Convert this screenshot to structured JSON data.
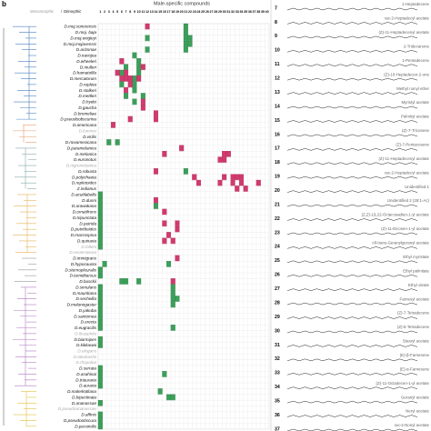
{
  "panel_label": "b",
  "title": "Male-specific compounds",
  "legend": [
    "Monomorphic",
    "/",
    "Dimorphic"
  ],
  "columns": [
    1,
    2,
    3,
    4,
    5,
    6,
    7,
    8,
    9,
    10,
    11,
    12,
    13,
    14,
    15,
    16,
    17,
    18,
    19,
    20,
    21,
    22,
    23,
    24,
    25,
    26,
    27,
    28,
    29,
    30,
    31,
    32,
    33,
    34,
    35,
    36,
    37,
    38,
    39,
    40
  ],
  "species": [
    {
      "name": "D.moj.sonorensis",
      "g": [
        21
      ],
      "m": [
        12
      ]
    },
    {
      "name": "D.moj. baja",
      "g": [
        21
      ],
      "m": []
    },
    {
      "name": "D.moj.wrigleyi",
      "g": [
        12,
        21,
        22
      ],
      "m": []
    },
    {
      "name": "D.moj.mojavensis",
      "g": [
        21,
        22
      ],
      "m": []
    },
    {
      "name": "D.arizonae",
      "g": [
        12,
        21
      ],
      "m": []
    },
    {
      "name": "D.navojoa",
      "g": [
        9
      ],
      "m": []
    },
    {
      "name": "D.wheeleri",
      "g": [
        10
      ],
      "m": [
        6
      ]
    },
    {
      "name": "D.mulleri",
      "g": [
        7,
        10
      ],
      "m": [
        11
      ]
    },
    {
      "name": "D.hamatofila",
      "g": [
        6,
        10
      ],
      "m": [
        5,
        7
      ]
    },
    {
      "name": "D.mercatorum",
      "g": [
        9
      ],
      "m": [
        6,
        7,
        8,
        10
      ]
    },
    {
      "name": "D.repleta",
      "g": [
        6,
        9
      ],
      "m": [
        8
      ]
    },
    {
      "name": "D.stalkeri",
      "g": [
        9
      ],
      "m": [
        7
      ]
    },
    {
      "name": "D.mettleri",
      "g": [
        7,
        11
      ],
      "m": []
    },
    {
      "name": "D.hydei",
      "g": [
        9
      ],
      "m": [
        11
      ]
    },
    {
      "name": "D.gaucha",
      "g": [],
      "m": [
        11
      ]
    },
    {
      "name": "D.bromeliae",
      "g": [],
      "m": [
        14
      ]
    },
    {
      "name": "D.pseudoobscurina",
      "g": [],
      "m": [
        8,
        14
      ]
    },
    {
      "name": "D.americana",
      "g": [],
      "m": [
        4
      ]
    },
    {
      "name": "D.lummei",
      "gray": true,
      "g": [],
      "m": []
    },
    {
      "name": "D.virilis",
      "g": [],
      "m": []
    },
    {
      "name": "D.novamexicana",
      "g": [
        3,
        5
      ],
      "m": []
    },
    {
      "name": "D.paramelanica",
      "g": [],
      "m": [
        20
      ]
    },
    {
      "name": "D.melanica",
      "g": [],
      "m": [
        16,
        30,
        31
      ]
    },
    {
      "name": "D.euronotus",
      "g": [],
      "m": [
        29,
        30
      ]
    },
    {
      "name": "D.nigromelanica",
      "gray": true,
      "g": [],
      "m": []
    },
    {
      "name": "D.robusta",
      "g": [
        21
      ],
      "m": [
        14
      ]
    },
    {
      "name": "D.polychaeta",
      "g": [],
      "m": [
        23,
        30,
        32,
        33,
        34
      ]
    },
    {
      "name": "D.repletoides",
      "g": [],
      "m": [
        24,
        29,
        32,
        34,
        38
      ]
    },
    {
      "name": "Z.indianus",
      "g": [],
      "m": [
        33,
        35
      ]
    },
    {
      "name": "D.acutilabella",
      "g": [
        1
      ],
      "m": []
    },
    {
      "name": "D.dunni",
      "g": [
        1
      ],
      "m": [
        14
      ]
    },
    {
      "name": "D.arawakana",
      "g": [
        1,
        14
      ],
      "m": []
    },
    {
      "name": "D.ornatifrons",
      "g": [
        1
      ],
      "m": [
        16
      ]
    },
    {
      "name": "D.tripunctata",
      "g": [
        1
      ],
      "m": []
    },
    {
      "name": "D.putrida",
      "g": [
        1
      ],
      "m": [
        16,
        19
      ]
    },
    {
      "name": "D.putridioides",
      "g": [
        1
      ],
      "m": [
        19
      ]
    },
    {
      "name": "D.macrospina",
      "g": [
        1
      ],
      "m": [
        17
      ]
    },
    {
      "name": "D.quinaria",
      "g": [
        1
      ],
      "m": [
        16,
        18
      ]
    },
    {
      "name": "D.falleni",
      "gray": true,
      "g": [
        1
      ],
      "m": []
    },
    {
      "name": "D.neotestacea",
      "gray": true,
      "g": [],
      "m": []
    },
    {
      "name": "D.immigrans",
      "g": [],
      "m": [
        19
      ]
    },
    {
      "name": "D.hypocausta",
      "g": [
        2,
        17
      ],
      "m": []
    },
    {
      "name": "D.sternopleuralis",
      "g": [
        1
      ],
      "m": []
    },
    {
      "name": "D.tumiditarsus",
      "g": [
        1
      ],
      "m": []
    },
    {
      "name": "D.busckii",
      "g": [
        6,
        7,
        10
      ],
      "m": [
        18
      ]
    },
    {
      "name": "D.simulans",
      "g": [
        1,
        18
      ],
      "m": []
    },
    {
      "name": "D.mauritiana",
      "g": [
        1,
        18
      ],
      "m": []
    },
    {
      "name": "D.sechellia",
      "g": [
        1,
        18,
        19
      ],
      "m": []
    },
    {
      "name": "D.melanogaster",
      "g": [
        1,
        18
      ],
      "m": []
    },
    {
      "name": "D.yakuba",
      "g": [
        1
      ],
      "m": []
    },
    {
      "name": "D.santomea",
      "g": [
        1
      ],
      "m": []
    },
    {
      "name": "D.erecta",
      "g": [
        1
      ],
      "m": []
    },
    {
      "name": "D.eugracilis",
      "g": [
        1,
        18
      ],
      "m": []
    },
    {
      "name": "D.ficusphila",
      "gray": true,
      "g": [],
      "m": []
    },
    {
      "name": "D.biarmipes",
      "g": [
        1
      ],
      "m": []
    },
    {
      "name": "D.kikkawai",
      "g": [
        1
      ],
      "m": []
    },
    {
      "name": "D.elegans",
      "gray": true,
      "g": [],
      "m": []
    },
    {
      "name": "D.takahashii",
      "gray": true,
      "g": [],
      "m": []
    },
    {
      "name": "D.rhopaloa",
      "gray": true,
      "g": [],
      "m": []
    },
    {
      "name": "D.serrata",
      "g": [
        1
      ],
      "m": []
    },
    {
      "name": "D.asahinai",
      "g": [
        1,
        16
      ],
      "m": []
    },
    {
      "name": "D.triauraria",
      "g": [
        1
      ],
      "m": []
    },
    {
      "name": "D.auraria",
      "g": [
        1
      ],
      "m": []
    },
    {
      "name": "D.malerkotliana",
      "g": [
        15
      ],
      "m": []
    },
    {
      "name": "D.bipectinata",
      "g": [
        17,
        18
      ],
      "m": []
    },
    {
      "name": "D.ananassae",
      "g": [
        1
      ],
      "m": []
    },
    {
      "name": "D.pseudoananassae",
      "gray": true,
      "g": [],
      "m": []
    },
    {
      "name": "D.affinis",
      "g": [
        1
      ],
      "m": []
    },
    {
      "name": "D.pseudoobscura",
      "g": [
        1
      ],
      "m": []
    },
    {
      "name": "D.persimilis",
      "g": [
        1
      ],
      "m": []
    }
  ],
  "compounds": [
    {
      "number": 7,
      "name": "1-Heptadecene"
    },
    {
      "number": 8,
      "name": "rac-2-Heptadecyl acetate"
    },
    {
      "number": 9,
      "name": "(Z)-11-Heptadecenyl acetate"
    },
    {
      "number": 10,
      "name": "2-Tridecanone"
    },
    {
      "number": 11,
      "name": "1-Pentadecene"
    },
    {
      "number": 12,
      "name": "(Z)-10-Heptadecen-2-one"
    },
    {
      "number": 13,
      "name": "Methyl nonyl ether"
    },
    {
      "number": 14,
      "name": "Myristyl acetate"
    },
    {
      "number": 15,
      "name": "Palmityl acetate"
    },
    {
      "number": 16,
      "name": "(Z)-7-Tricosene"
    },
    {
      "number": 17,
      "name": "(Z)-7-Pentacosene"
    },
    {
      "number": 18,
      "name": "(Z)-11-Heptadecenyl acetate"
    },
    {
      "number": 19,
      "name": "rac-2-Heptadecyl acetate"
    },
    {
      "number": 20,
      "name": "Unidentified 1"
    },
    {
      "number": 21,
      "name": "Unidentified 2 (28:1-Ac)"
    },
    {
      "number": 22,
      "name": "(Z,Z)-19,22-Octacosadien-1-yl acetate"
    },
    {
      "number": 23,
      "name": "(Z)-11-Eicosen-1-yl acetate"
    },
    {
      "number": 24,
      "name": "All-trans-Geranylgeranyl acetate"
    },
    {
      "number": 25,
      "name": "Ethyl myristate"
    },
    {
      "number": 26,
      "name": "Ethyl palmitate"
    },
    {
      "number": 27,
      "name": "Ethyl oleate"
    },
    {
      "number": 28,
      "name": "Farnesyl acetate"
    },
    {
      "number": 29,
      "name": "(Z)-7-Tetradecene"
    },
    {
      "number": 30,
      "name": "(Z)-5-Tetradecene"
    },
    {
      "number": 31,
      "name": "Stearyl acetate"
    },
    {
      "number": 32,
      "name": "(E)-β-Farnesene"
    },
    {
      "number": 33,
      "name": "(E)-α-Farnesene"
    },
    {
      "number": 34,
      "name": "(Z)-11-Octadecen-1-yl acetate"
    },
    {
      "number": 35,
      "name": "Geranyl acetate"
    },
    {
      "number": 36,
      "name": "Neryl acetate"
    },
    {
      "number": 37,
      "name": "rac-2-Nonyl acetate"
    }
  ]
}
